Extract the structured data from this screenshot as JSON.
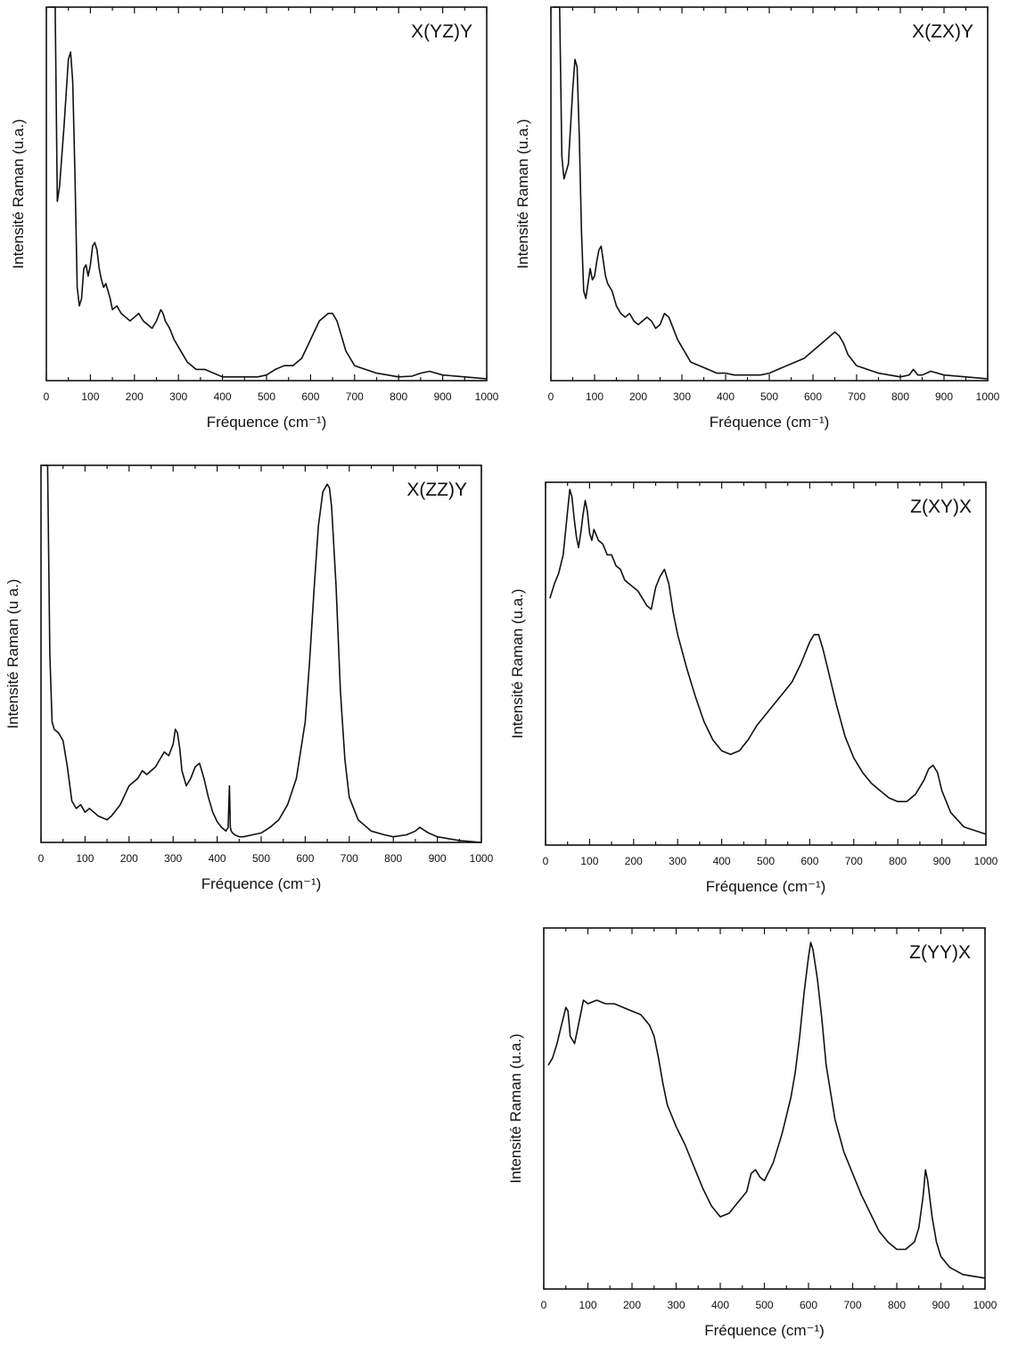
{
  "chart_data": [
    {
      "type": "line",
      "title": "X(YZ)Y",
      "xlabel": "Fréquence (cm⁻¹)",
      "ylabel": "Intensité Raman (u.a.)",
      "xlim": [
        0,
        1000
      ],
      "ylim": [
        0,
        100
      ],
      "xticks": [
        0,
        100,
        200,
        300,
        400,
        500,
        600,
        700,
        800,
        900,
        1000
      ],
      "grid": false,
      "series": [
        {
          "x": [
            5,
            10,
            15,
            20,
            25,
            30,
            40,
            50,
            55,
            60,
            65,
            70,
            75,
            80,
            85,
            90,
            95,
            100,
            105,
            110,
            115,
            120,
            125,
            130,
            135,
            140,
            145,
            150,
            160,
            170,
            180,
            190,
            200,
            210,
            220,
            230,
            240,
            250,
            260,
            265,
            270,
            280,
            290,
            300,
            310,
            320,
            340,
            360,
            380,
            400,
            420,
            450,
            480,
            500,
            520,
            540,
            560,
            580,
            600,
            620,
            640,
            650,
            660,
            670,
            680,
            700,
            750,
            800,
            830,
            850,
            870,
            900,
            950,
            1000
          ],
          "y": [
            100,
            100,
            100,
            100,
            48,
            52,
            68,
            86,
            88,
            80,
            55,
            25,
            20,
            22,
            30,
            31,
            28,
            31,
            36,
            37,
            35,
            30,
            27,
            25,
            26,
            24,
            22,
            19,
            20,
            18,
            17,
            16,
            17,
            18,
            16,
            15,
            14,
            16,
            19,
            18,
            16,
            14,
            11,
            9,
            7,
            5,
            3,
            3,
            2,
            1,
            1,
            1,
            1,
            1.5,
            3,
            4,
            4,
            6,
            11,
            16,
            18,
            18,
            16,
            12,
            8,
            4,
            2,
            1,
            1.2,
            2,
            2.5,
            1.5,
            1,
            0.5
          ]
        }
      ]
    },
    {
      "type": "line",
      "title": "X(ZX)Y",
      "xlabel": "Fréquence (cm⁻¹)",
      "ylabel": "Intensité Raman (u.a.)",
      "xlim": [
        0,
        1000
      ],
      "ylim": [
        0,
        100
      ],
      "xticks": [
        0,
        100,
        200,
        300,
        400,
        500,
        600,
        700,
        800,
        900,
        1000
      ],
      "grid": false,
      "series": [
        {
          "x": [
            5,
            10,
            15,
            20,
            25,
            30,
            40,
            50,
            55,
            60,
            65,
            70,
            75,
            80,
            85,
            90,
            95,
            100,
            105,
            110,
            115,
            120,
            125,
            130,
            140,
            150,
            160,
            170,
            180,
            190,
            200,
            210,
            220,
            230,
            240,
            250,
            260,
            270,
            280,
            290,
            300,
            310,
            320,
            340,
            360,
            380,
            400,
            420,
            450,
            480,
            500,
            520,
            540,
            560,
            580,
            600,
            620,
            640,
            650,
            660,
            670,
            680,
            700,
            750,
            800,
            820,
            830,
            840,
            850,
            870,
            900,
            950,
            1000
          ],
          "y": [
            100,
            100,
            100,
            100,
            60,
            54,
            58,
            78,
            86,
            84,
            65,
            40,
            24,
            22,
            26,
            30,
            27,
            28,
            32,
            35,
            36,
            32,
            28,
            26,
            24,
            20,
            18,
            17,
            18,
            16,
            15,
            16,
            17,
            16,
            14,
            15,
            18,
            17,
            14,
            11,
            9,
            7,
            5,
            4,
            3,
            2,
            2,
            1.5,
            1.5,
            1.5,
            2,
            3,
            4,
            5,
            6,
            8,
            10,
            12,
            13,
            12,
            10,
            7,
            4,
            2,
            1,
            1.5,
            3,
            1.5,
            1.5,
            2.5,
            1.5,
            1,
            0.5
          ]
        }
      ]
    },
    {
      "type": "line",
      "title": "X(ZZ)Y",
      "xlabel": "Fréquence (cm⁻¹)",
      "ylabel": "Intensité Raman (u a.)",
      "xlim": [
        0,
        1000
      ],
      "ylim": [
        0,
        100
      ],
      "xticks": [
        0,
        100,
        200,
        300,
        400,
        500,
        600,
        700,
        800,
        900,
        1000
      ],
      "xticklabels": [
        "0",
        "100",
        "200",
        "300",
        "400",
        "500",
        "600",
        "700",
        "800",
        "900",
        "1000"
      ],
      "grid": false,
      "series": [
        {
          "x": [
            5,
            8,
            10,
            12,
            15,
            20,
            25,
            30,
            40,
            50,
            60,
            70,
            80,
            90,
            100,
            110,
            120,
            130,
            140,
            150,
            160,
            180,
            200,
            220,
            230,
            240,
            260,
            280,
            290,
            300,
            305,
            310,
            315,
            320,
            330,
            340,
            350,
            360,
            370,
            380,
            390,
            400,
            410,
            420,
            425,
            428,
            430,
            432,
            435,
            440,
            450,
            460,
            480,
            500,
            520,
            540,
            560,
            580,
            600,
            610,
            620,
            630,
            640,
            650,
            655,
            660,
            670,
            680,
            690,
            700,
            720,
            750,
            780,
            800,
            830,
            850,
            860,
            880,
            900,
            950,
            1000
          ],
          "y": [
            100,
            100,
            100,
            100,
            100,
            50,
            32,
            30,
            29,
            27,
            20,
            11,
            9,
            10,
            8,
            9,
            8,
            7,
            6.5,
            6,
            7,
            10,
            15,
            17,
            19,
            18,
            20,
            24,
            23,
            26,
            30,
            29,
            25,
            19,
            15,
            17,
            20,
            21,
            17,
            12,
            8,
            5.5,
            4,
            3,
            4,
            15,
            4,
            3,
            2.5,
            2,
            1.5,
            1.5,
            2,
            2.5,
            4,
            6,
            10,
            17,
            32,
            48,
            67,
            84,
            93,
            95,
            94,
            89,
            68,
            40,
            22,
            12,
            6,
            3,
            2,
            1.5,
            2,
            3,
            4,
            2.5,
            1.5,
            0.5,
            0
          ]
        }
      ]
    },
    {
      "type": "line",
      "title": "Z(XY)X",
      "xlabel": "Fréquence (cm⁻¹)",
      "ylabel": "Intensité Raman (u.a.)",
      "xlim": [
        0,
        1000
      ],
      "ylim": [
        0,
        100
      ],
      "xticks": [
        0,
        100,
        200,
        300,
        400,
        500,
        600,
        700,
        800,
        900,
        1000
      ],
      "grid": false,
      "series": [
        {
          "x": [
            10,
            20,
            30,
            40,
            50,
            55,
            60,
            65,
            70,
            75,
            80,
            85,
            90,
            95,
            100,
            105,
            110,
            120,
            130,
            140,
            150,
            160,
            170,
            180,
            190,
            200,
            210,
            220,
            230,
            240,
            250,
            260,
            270,
            280,
            290,
            300,
            320,
            340,
            360,
            380,
            400,
            420,
            440,
            460,
            480,
            500,
            520,
            540,
            560,
            580,
            600,
            610,
            620,
            630,
            640,
            660,
            680,
            700,
            720,
            740,
            760,
            780,
            800,
            820,
            840,
            860,
            870,
            880,
            890,
            900,
            920,
            950,
            1000
          ],
          "y": [
            68,
            72,
            75,
            80,
            92,
            98,
            96,
            90,
            85,
            82,
            86,
            91,
            95,
            92,
            86,
            84,
            87,
            84,
            83,
            80,
            80,
            77,
            76,
            73,
            72,
            71,
            70,
            68,
            66,
            65,
            71,
            74,
            76,
            72,
            64,
            58,
            49,
            41,
            34,
            29,
            26,
            25,
            26,
            29,
            33,
            36,
            39,
            42,
            45,
            50,
            56,
            58,
            58,
            54,
            49,
            39,
            30,
            24,
            20,
            17,
            15,
            13,
            12,
            12,
            14,
            18,
            21,
            22,
            20,
            15,
            9,
            5,
            3
          ]
        }
      ]
    },
    {
      "type": "line",
      "title": "Z(YY)X",
      "xlabel": "Fréquence (cm⁻¹)",
      "ylabel": "Intensité Raman (u.a.)",
      "xlim": [
        0,
        1000
      ],
      "ylim": [
        0,
        100
      ],
      "xticks": [
        0,
        100,
        200,
        300,
        400,
        500,
        600,
        700,
        800,
        900,
        1000
      ],
      "grid": false,
      "series": [
        {
          "x": [
            10,
            20,
            30,
            40,
            50,
            55,
            60,
            70,
            80,
            90,
            100,
            120,
            140,
            160,
            180,
            200,
            220,
            240,
            250,
            260,
            270,
            280,
            300,
            320,
            340,
            360,
            380,
            400,
            420,
            440,
            460,
            470,
            480,
            490,
            500,
            520,
            540,
            560,
            570,
            580,
            590,
            600,
            605,
            610,
            620,
            630,
            640,
            660,
            680,
            700,
            720,
            740,
            760,
            780,
            800,
            820,
            840,
            850,
            860,
            865,
            870,
            880,
            890,
            900,
            920,
            950,
            1000
          ],
          "y": [
            62,
            64,
            68,
            73,
            78,
            77,
            70,
            68,
            74,
            80,
            79,
            80,
            79,
            79,
            78,
            77,
            76,
            73,
            70,
            64,
            57,
            51,
            45,
            40,
            34,
            28,
            23,
            20,
            21,
            24,
            27,
            32,
            33,
            31,
            30,
            35,
            43,
            53,
            60,
            70,
            82,
            92,
            96,
            94,
            86,
            75,
            62,
            47,
            38,
            32,
            26,
            21,
            16,
            13,
            11,
            11,
            13,
            17,
            26,
            33,
            30,
            20,
            13,
            9,
            6,
            4,
            3
          ]
        }
      ]
    }
  ]
}
